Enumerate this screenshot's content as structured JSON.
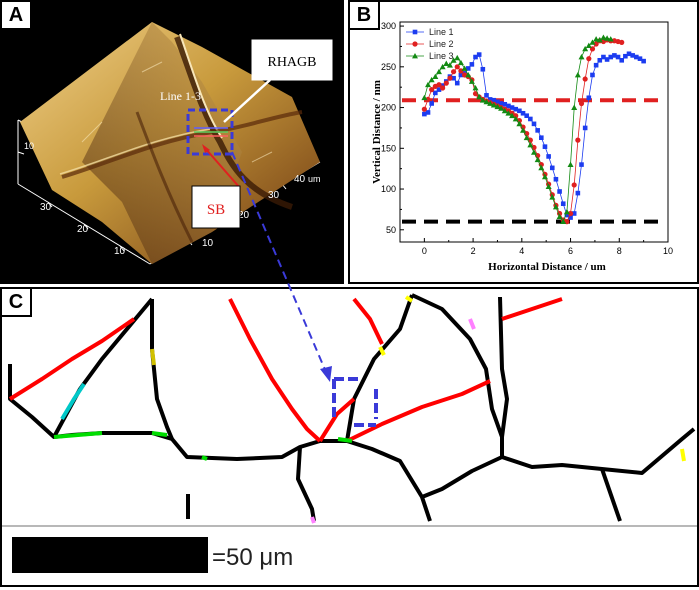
{
  "panels": {
    "a": {
      "letter": "A",
      "label_rhagb": "RHAGB",
      "label_line": "Line 1-3",
      "label_sb": "SB",
      "axis_ticks_left": [
        "30",
        "20",
        "10"
      ],
      "axis_ticks_right": [
        "40",
        "30",
        "20",
        "10"
      ],
      "axis_unit": "um",
      "vertical_tick": "10",
      "colors": {
        "surface": "#c89a3c",
        "shadow": "#5a2a0a",
        "highlight": "#f3dca0",
        "marker": "#3a3ad8",
        "arrow": "#e02020"
      }
    },
    "b": {
      "letter": "B"
    },
    "c": {
      "letter": "C",
      "scale_text": "=50 μm",
      "colors": {
        "high_angle": "#000000",
        "special": "#ff0000",
        "low_angle": "#00dd00",
        "marker": "#3a3ad8"
      }
    }
  },
  "chart_data": {
    "type": "scatter",
    "title": "",
    "xlabel": "Horizontal Distance / um",
    "ylabel": "Vertical Distance / nm",
    "xlim": [
      -1,
      10
    ],
    "ylim": [
      35,
      305
    ],
    "xticks": [
      "0",
      "2",
      "4",
      "6",
      "8",
      "10"
    ],
    "yticks": [
      "50",
      "100",
      "150",
      "200",
      "250",
      "300"
    ],
    "legend_position": "top-left",
    "reference_lines": [
      {
        "name": "upper",
        "y": 209,
        "color": "#e02020"
      },
      {
        "name": "lower",
        "y": 60,
        "color": "#000000"
      }
    ],
    "series": [
      {
        "name": "Line 1",
        "color": "#1c3cf0",
        "marker": "square",
        "x": [
          0,
          0.15,
          0.3,
          0.45,
          0.6,
          0.75,
          0.9,
          1.05,
          1.2,
          1.35,
          1.5,
          1.65,
          1.8,
          1.95,
          2.1,
          2.25,
          2.4,
          2.55,
          2.7,
          2.85,
          3.0,
          3.15,
          3.3,
          3.45,
          3.6,
          3.75,
          3.9,
          4.05,
          4.2,
          4.35,
          4.5,
          4.65,
          4.8,
          4.95,
          5.1,
          5.25,
          5.4,
          5.55,
          5.7,
          5.85,
          6.0,
          6.15,
          6.3,
          6.45,
          6.6,
          6.75,
          6.9,
          7.05,
          7.2,
          7.35,
          7.5,
          7.65,
          7.8,
          7.95,
          8.1,
          8.25,
          8.4,
          8.55,
          8.7,
          8.85,
          9.0
        ],
        "y": [
          192,
          194,
          205,
          218,
          222,
          227,
          232,
          238,
          236,
          230,
          240,
          242,
          248,
          253,
          262,
          265,
          247,
          215,
          210,
          209,
          207,
          205,
          204,
          202,
          200,
          198,
          196,
          193,
          190,
          186,
          180,
          172,
          163,
          152,
          140,
          126,
          112,
          97,
          82,
          68,
          65,
          70,
          95,
          130,
          175,
          212,
          240,
          252,
          258,
          262,
          259,
          262,
          264,
          262,
          258,
          263,
          266,
          264,
          262,
          260,
          257
        ]
      },
      {
        "name": "Line 2",
        "color": "#e02020",
        "marker": "circle",
        "x": [
          0,
          0.15,
          0.3,
          0.45,
          0.6,
          0.75,
          0.9,
          1.05,
          1.2,
          1.35,
          1.5,
          1.65,
          1.8,
          1.95,
          2.1,
          2.25,
          2.4,
          2.55,
          2.7,
          2.85,
          3.0,
          3.15,
          3.3,
          3.45,
          3.6,
          3.75,
          3.9,
          4.05,
          4.2,
          4.35,
          4.5,
          4.65,
          4.8,
          4.95,
          5.1,
          5.25,
          5.4,
          5.55,
          5.7,
          5.85,
          6.0,
          6.15,
          6.3,
          6.45,
          6.6,
          6.75,
          6.9,
          7.05,
          7.2,
          7.35,
          7.5,
          7.65,
          7.8,
          7.95,
          8.1
        ],
        "y": [
          198,
          210,
          222,
          226,
          228,
          224,
          230,
          236,
          244,
          250,
          245,
          240,
          238,
          234,
          217,
          213,
          210,
          208,
          206,
          204,
          202,
          200,
          198,
          196,
          193,
          190,
          184,
          176,
          168,
          160,
          151,
          141,
          130,
          118,
          106,
          93,
          80,
          70,
          62,
          60,
          70,
          105,
          160,
          205,
          235,
          260,
          272,
          278,
          282,
          281,
          283,
          282,
          282,
          281,
          280
        ]
      },
      {
        "name": "Line 3",
        "color": "#138a13",
        "marker": "triangle",
        "x": [
          0,
          0.15,
          0.3,
          0.45,
          0.6,
          0.75,
          0.9,
          1.05,
          1.2,
          1.35,
          1.5,
          1.65,
          1.8,
          1.95,
          2.1,
          2.25,
          2.4,
          2.55,
          2.7,
          2.85,
          3.0,
          3.15,
          3.3,
          3.45,
          3.6,
          3.75,
          3.9,
          4.05,
          4.2,
          4.35,
          4.5,
          4.65,
          4.8,
          4.95,
          5.1,
          5.25,
          5.4,
          5.55,
          5.7,
          5.85,
          6.0,
          6.15,
          6.3,
          6.45,
          6.6,
          6.75,
          6.9,
          7.05,
          7.2,
          7.35,
          7.5,
          7.65
        ],
        "y": [
          212,
          228,
          234,
          238,
          244,
          250,
          254,
          252,
          258,
          261,
          255,
          248,
          240,
          232,
          224,
          213,
          209,
          207,
          205,
          203,
          201,
          199,
          196,
          193,
          190,
          186,
          180,
          172,
          163,
          154,
          145,
          136,
          126,
          115,
          103,
          90,
          78,
          66,
          60,
          72,
          130,
          200,
          240,
          262,
          272,
          276,
          280,
          284,
          283,
          286,
          285,
          284
        ]
      }
    ]
  }
}
